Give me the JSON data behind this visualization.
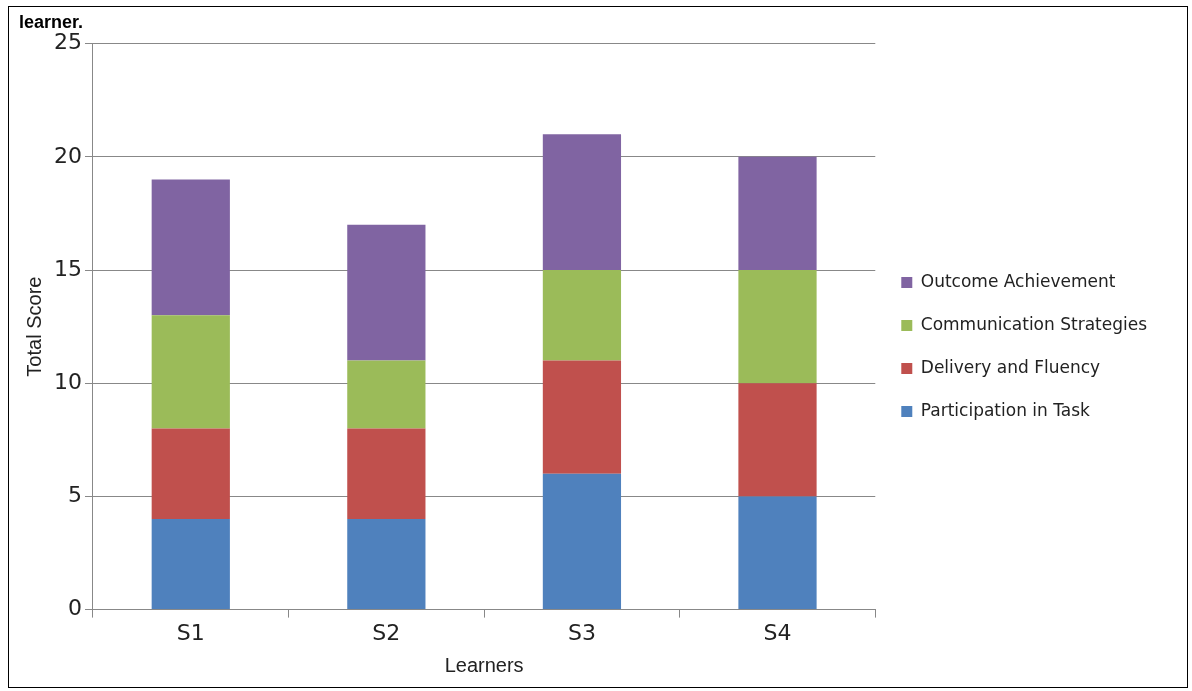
{
  "chart_data": {
    "type": "bar",
    "title": "learner.",
    "xlabel": "Learners",
    "ylabel": "Total Score",
    "categories": [
      "S1",
      "S2",
      "S3",
      "S4"
    ],
    "stacked": true,
    "series": [
      {
        "name": "Participation in Task",
        "color": "#4f81bd",
        "values": [
          4,
          4,
          6,
          5
        ]
      },
      {
        "name": "Delivery and Fluency",
        "color": "#c0504d",
        "values": [
          4,
          4,
          5,
          5
        ]
      },
      {
        "name": "Communication Strategies",
        "color": "#9bbb59",
        "values": [
          5,
          3,
          4,
          5
        ]
      },
      {
        "name": "Outcome Achievement",
        "color": "#8064a2",
        "values": [
          6,
          6,
          6,
          5
        ]
      }
    ],
    "ylim": [
      0,
      25
    ],
    "yticks": [
      0,
      5,
      10,
      15,
      20,
      25
    ],
    "grid": "y",
    "legend": "right"
  }
}
